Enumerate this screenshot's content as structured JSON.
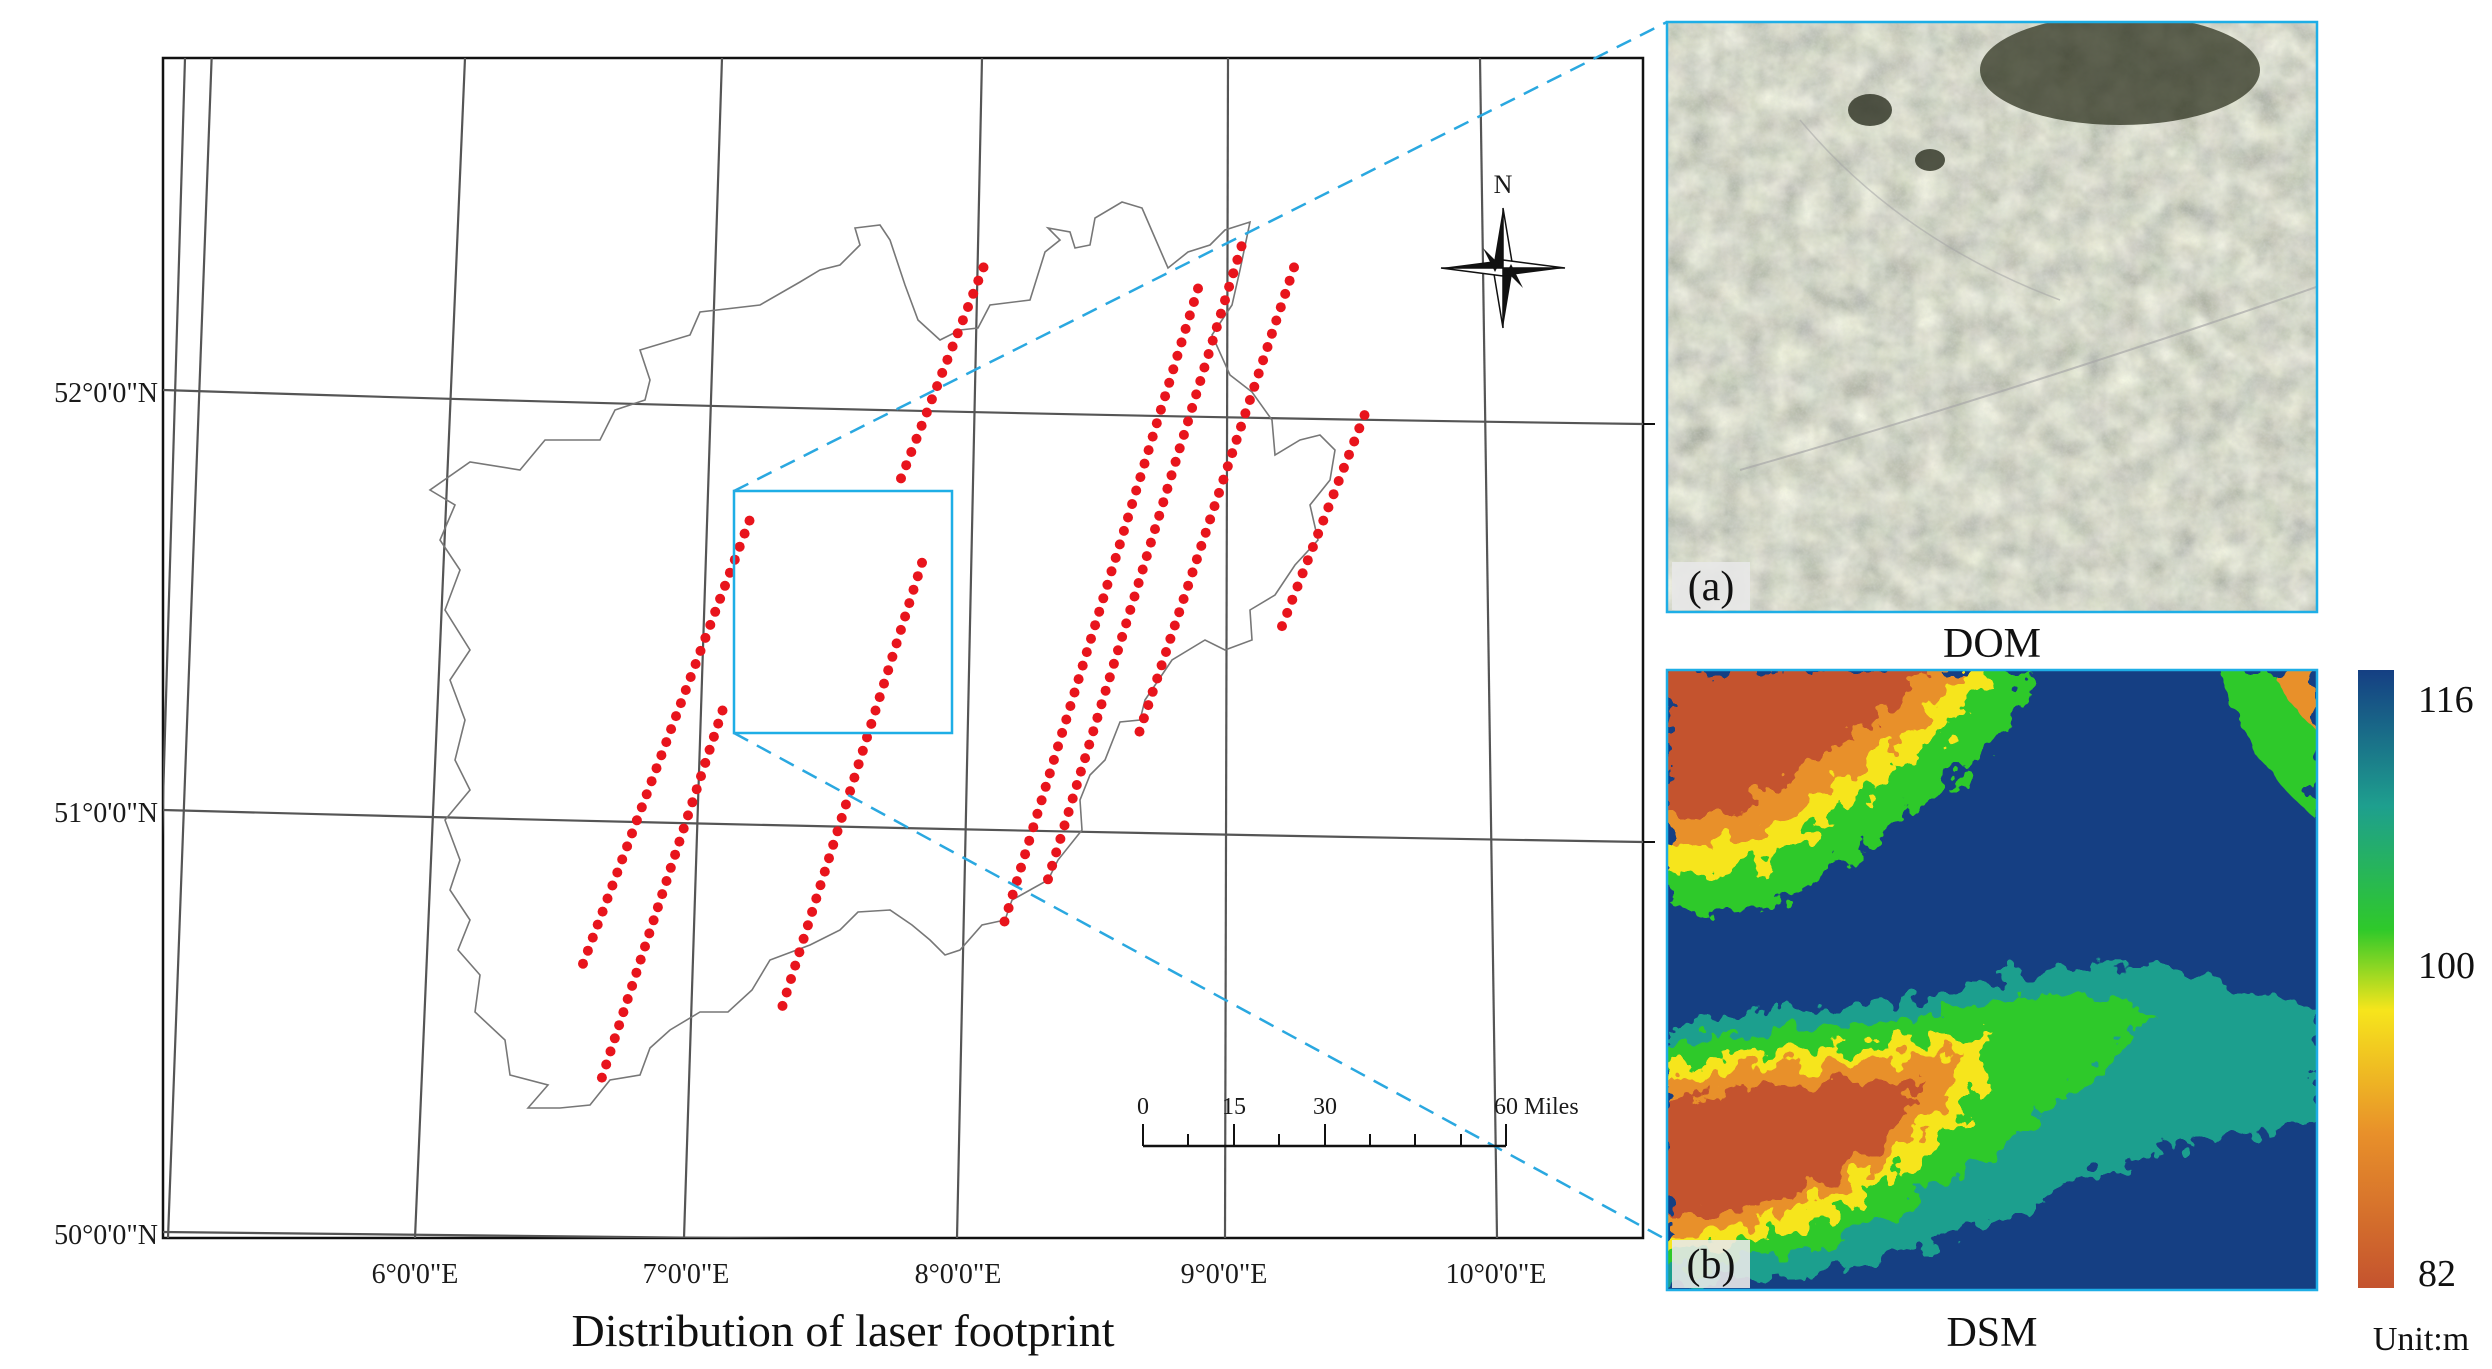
{
  "map": {
    "caption": "Distribution of laser footprint",
    "lat_labels": [
      "52°0'0\"N",
      "51°0'0\"N",
      "50°0'0\"N"
    ],
    "lon_labels": [
      "6°0'0\"E",
      "7°0'0\"E",
      "8°0'0\"E",
      "9°0'0\"E",
      "10°0'0\"E"
    ],
    "north_arrow_label": "N",
    "scale_bar": {
      "ticks": [
        "0",
        "15",
        "30",
        "60 Miles"
      ]
    },
    "colors": {
      "footprint": "#e8141c",
      "zoom_box": "#1eaee6",
      "leader_line": "#2aa8e0",
      "grid": "#555555",
      "boundary": "#777777"
    },
    "footprint_tracks": [
      {
        "lon_start": 6.55,
        "lat_start": 50.65,
        "lon_end": 7.05,
        "lat_end": 51.7
      },
      {
        "lon_start": 6.65,
        "lat_start": 50.38,
        "lon_end": 7.0,
        "lat_end": 51.25
      },
      {
        "lon_start": 7.3,
        "lat_start": 50.55,
        "lon_end": 7.7,
        "lat_end": 51.6
      },
      {
        "lon_start": 7.6,
        "lat_start": 51.8,
        "lon_end": 7.85,
        "lat_end": 52.3
      },
      {
        "lon_start": 8.1,
        "lat_start": 50.75,
        "lon_end": 8.65,
        "lat_end": 52.25
      },
      {
        "lon_start": 8.25,
        "lat_start": 50.85,
        "lon_end": 8.8,
        "lat_end": 52.35
      },
      {
        "lon_start": 8.55,
        "lat_start": 51.2,
        "lon_end": 9.0,
        "lat_end": 52.3
      },
      {
        "lon_start": 9.05,
        "lat_start": 51.45,
        "lon_end": 9.3,
        "lat_end": 51.95
      }
    ]
  },
  "dom_panel": {
    "tag": "(a)",
    "caption": "DOM"
  },
  "dsm_panel": {
    "tag": "(b)",
    "caption": "DSM",
    "colorbar": {
      "max_label": "116",
      "mid_label": "100",
      "min_label": "82",
      "unit": "Unit:m",
      "stops": [
        "#c4532e",
        "#e8902a",
        "#f6e51c",
        "#2fc92a",
        "#1e9f8e",
        "#153f83"
      ]
    }
  }
}
